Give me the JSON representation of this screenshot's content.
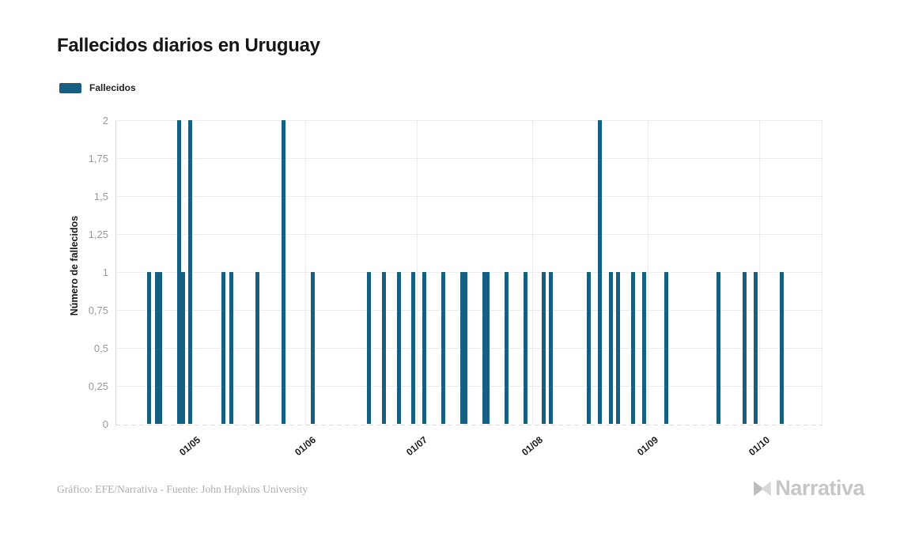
{
  "title": "Fallecidos diarios en Uruguay",
  "legend": {
    "label": "Fallecidos"
  },
  "y_axis": {
    "title": "Número de fallecidos"
  },
  "footer": {
    "credit": "Gráfico: EFE/Narrativa - Fuente: John Hopkins University"
  },
  "logo": {
    "text": "Narrativa"
  },
  "colors": {
    "bar": "#155f82",
    "grid": "#ededed",
    "axis": "#d9d9d9",
    "y_tick_text": "#999999",
    "x_tick_text": "#1a1a1a"
  },
  "chart_data": {
    "type": "bar",
    "title": "Fallecidos diarios en Uruguay",
    "series_name": "Fallecidos",
    "xlabel": "",
    "ylabel": "Número de fallecidos",
    "ylim": [
      0,
      2
    ],
    "grid": true,
    "legend_position": "top-left",
    "y_ticks_bottom_to_top": [
      "0",
      "0,25",
      "0,5",
      "0,75",
      "1",
      "1,25",
      "1,5",
      "1,75",
      "2"
    ],
    "x_ticks": [
      "01/05",
      "01/06",
      "01/07",
      "01/08",
      "01/09",
      "01/10"
    ],
    "date_format": "dd/mm",
    "bars": [
      {
        "date": "20/04",
        "value": 1
      },
      {
        "date": "22/04",
        "value": 1
      },
      {
        "date": "23/04",
        "value": 1
      },
      {
        "date": "28/04",
        "value": 2
      },
      {
        "date": "29/04",
        "value": 1
      },
      {
        "date": "01/05",
        "value": 2
      },
      {
        "date": "10/05",
        "value": 1
      },
      {
        "date": "12/05",
        "value": 1
      },
      {
        "date": "19/05",
        "value": 1
      },
      {
        "date": "26/05",
        "value": 2
      },
      {
        "date": "03/06",
        "value": 1
      },
      {
        "date": "18/06",
        "value": 1
      },
      {
        "date": "22/06",
        "value": 1
      },
      {
        "date": "26/06",
        "value": 1
      },
      {
        "date": "30/06",
        "value": 1
      },
      {
        "date": "03/07",
        "value": 1
      },
      {
        "date": "08/07",
        "value": 1
      },
      {
        "date": "13/07",
        "value": 1
      },
      {
        "date": "14/07",
        "value": 1
      },
      {
        "date": "19/07",
        "value": 1
      },
      {
        "date": "20/07",
        "value": 1
      },
      {
        "date": "25/07",
        "value": 1
      },
      {
        "date": "30/07",
        "value": 1
      },
      {
        "date": "04/08",
        "value": 1
      },
      {
        "date": "06/08",
        "value": 1
      },
      {
        "date": "16/08",
        "value": 1
      },
      {
        "date": "19/08",
        "value": 2
      },
      {
        "date": "22/08",
        "value": 1
      },
      {
        "date": "24/08",
        "value": 1
      },
      {
        "date": "28/08",
        "value": 1
      },
      {
        "date": "31/08",
        "value": 1
      },
      {
        "date": "06/09",
        "value": 1
      },
      {
        "date": "20/09",
        "value": 1
      },
      {
        "date": "27/09",
        "value": 1
      },
      {
        "date": "30/09",
        "value": 1
      },
      {
        "date": "07/10",
        "value": 1
      }
    ]
  }
}
